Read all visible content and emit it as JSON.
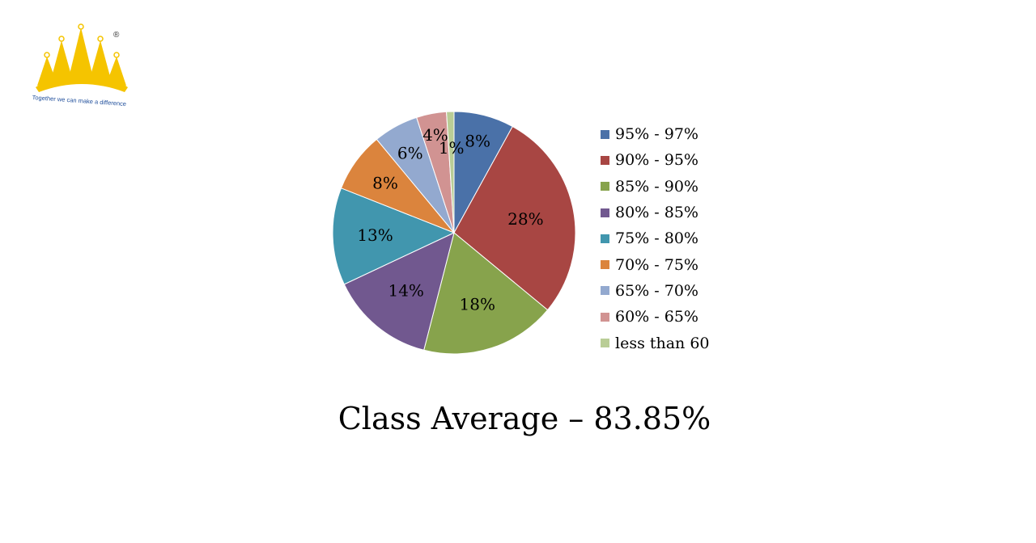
{
  "logo": {
    "tagline": "Together we can make a difference",
    "registered": "®"
  },
  "chart_data": {
    "type": "pie",
    "title": "",
    "categories": [
      "95% - 97%",
      "90% - 95%",
      "85% - 90%",
      "80% - 85%",
      "75% - 80%",
      "70% - 75%",
      "65% - 70%",
      "60% - 65%",
      "less than 60"
    ],
    "values": [
      8,
      28,
      18,
      14,
      13,
      8,
      6,
      4,
      1
    ],
    "data_labels": [
      "8%",
      "28%",
      "18%",
      "14%",
      "13%",
      "8%",
      "6%",
      "4%",
      "1%"
    ],
    "colors": [
      "#4a71a8",
      "#a84643",
      "#87a34c",
      "#71588f",
      "#4196ae",
      "#db843d",
      "#93a9cf",
      "#d19392",
      "#b9cd96"
    ],
    "start_angle": "12 o'clock",
    "direction": "clockwise",
    "legend_position": "right"
  },
  "caption": "Class Average – 83.85%"
}
